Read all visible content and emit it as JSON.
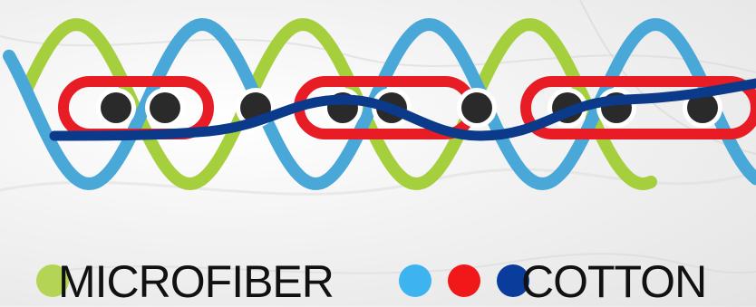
{
  "legend": {
    "microfiber_label": "MICROFIBER",
    "cotton_label": "COTTON"
  },
  "colors": {
    "microfiber": "#b4d455",
    "cotton_light_blue": "#3db4f0",
    "cotton_red": "#f01818",
    "cotton_dark_blue": "#0a3c9c",
    "strand_light_blue": "#4aa8d8",
    "strand_green": "#a6cf3e",
    "strand_red": "#e81c24",
    "strand_navy": "#0c3a8a",
    "fiber_core": "#2a2a2a"
  },
  "icons": [
    "microfiber-dot-icon",
    "cotton-light-blue-dot-icon",
    "cotton-red-dot-icon",
    "cotton-dark-blue-dot-icon"
  ]
}
